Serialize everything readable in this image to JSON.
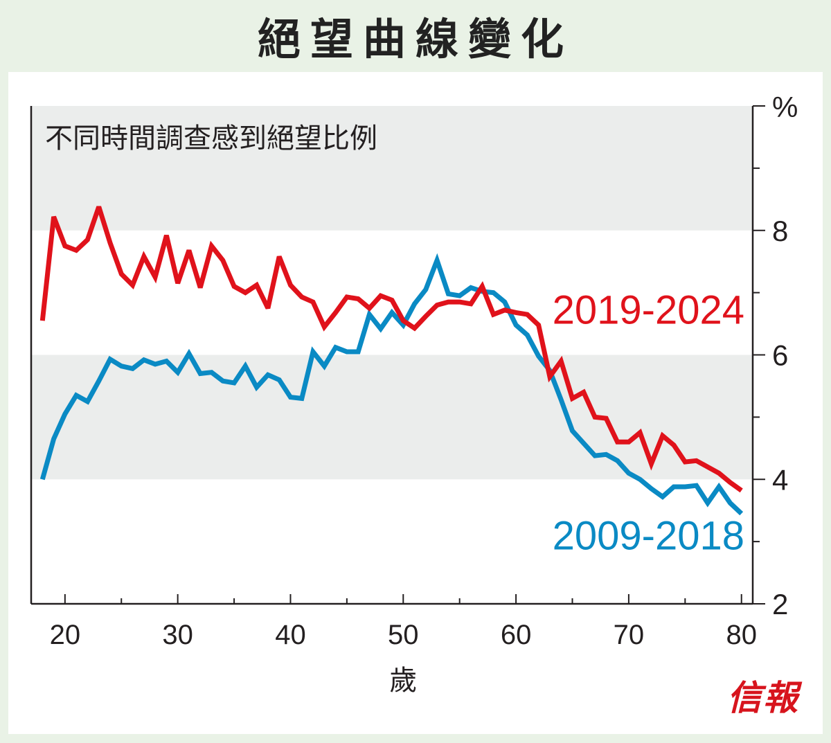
{
  "title": "絕望曲線變化",
  "brand": "信報",
  "chart_data": {
    "type": "line",
    "subtitle": "不同時間調查感到絕望比例",
    "xlabel": "歲",
    "ylabel": "%",
    "xlim": [
      17,
      81
    ],
    "ylim": [
      2,
      10
    ],
    "x_ticks": [
      20,
      30,
      40,
      50,
      60,
      70,
      80
    ],
    "y_ticks": [
      2,
      4,
      6,
      8
    ],
    "grid": "alternating horizontal bands (shaded 4–6 and 8–10)",
    "colors": {
      "band": "#ebedec",
      "series_2019": "#e0121b",
      "series_2009": "#0a8ac4",
      "text": "#231f20"
    },
    "series": [
      {
        "name": "2019-2024",
        "color": "#e0121b",
        "x": [
          18,
          19,
          20,
          21,
          22,
          23,
          24,
          25,
          26,
          27,
          28,
          29,
          30,
          31,
          32,
          33,
          34,
          35,
          36,
          37,
          38,
          39,
          40,
          41,
          42,
          43,
          44,
          45,
          46,
          47,
          48,
          49,
          50,
          51,
          52,
          53,
          54,
          55,
          56,
          57,
          58,
          59,
          60,
          61,
          62,
          63,
          64,
          65,
          66,
          67,
          68,
          69,
          70,
          71,
          72,
          73,
          74,
          75,
          76,
          77,
          78,
          79,
          80
        ],
        "values": [
          6.55,
          8.22,
          7.75,
          7.68,
          7.85,
          8.38,
          7.8,
          7.3,
          7.12,
          7.58,
          7.25,
          7.92,
          7.15,
          7.68,
          7.08,
          7.75,
          7.52,
          7.1,
          7.0,
          7.12,
          6.75,
          7.58,
          7.12,
          6.93,
          6.85,
          6.45,
          6.68,
          6.93,
          6.9,
          6.75,
          6.95,
          6.88,
          6.55,
          6.43,
          6.62,
          6.8,
          6.85,
          6.85,
          6.82,
          7.1,
          6.65,
          6.72,
          6.68,
          6.65,
          6.48,
          5.65,
          5.9,
          5.3,
          5.4,
          5.0,
          4.98,
          4.6,
          4.6,
          4.75,
          4.25,
          4.7,
          4.55,
          4.28,
          4.3,
          4.2,
          4.1,
          3.95,
          3.82
        ]
      },
      {
        "name": "2009-2018",
        "color": "#0a8ac4",
        "x": [
          18,
          19,
          20,
          21,
          22,
          23,
          24,
          25,
          26,
          27,
          28,
          29,
          30,
          31,
          32,
          33,
          34,
          35,
          36,
          37,
          38,
          39,
          40,
          41,
          42,
          43,
          44,
          45,
          46,
          47,
          48,
          49,
          50,
          51,
          52,
          53,
          54,
          55,
          56,
          57,
          58,
          59,
          60,
          61,
          62,
          63,
          64,
          65,
          66,
          67,
          68,
          69,
          70,
          71,
          72,
          73,
          74,
          75,
          76,
          77,
          78,
          79,
          80
        ],
        "values": [
          4.0,
          4.65,
          5.05,
          5.35,
          5.25,
          5.58,
          5.93,
          5.82,
          5.78,
          5.92,
          5.85,
          5.9,
          5.72,
          6.02,
          5.7,
          5.72,
          5.58,
          5.55,
          5.82,
          5.48,
          5.68,
          5.6,
          5.32,
          5.3,
          6.05,
          5.82,
          6.12,
          6.05,
          6.05,
          6.65,
          6.42,
          6.68,
          6.48,
          6.82,
          7.05,
          7.52,
          6.98,
          6.95,
          7.08,
          7.02,
          7.0,
          6.85,
          6.48,
          6.32,
          5.98,
          5.75,
          5.28,
          4.78,
          4.58,
          4.38,
          4.4,
          4.3,
          4.1,
          4.0,
          3.85,
          3.72,
          3.88,
          3.88,
          3.9,
          3.62,
          3.88,
          3.62,
          3.45
        ]
      }
    ]
  }
}
